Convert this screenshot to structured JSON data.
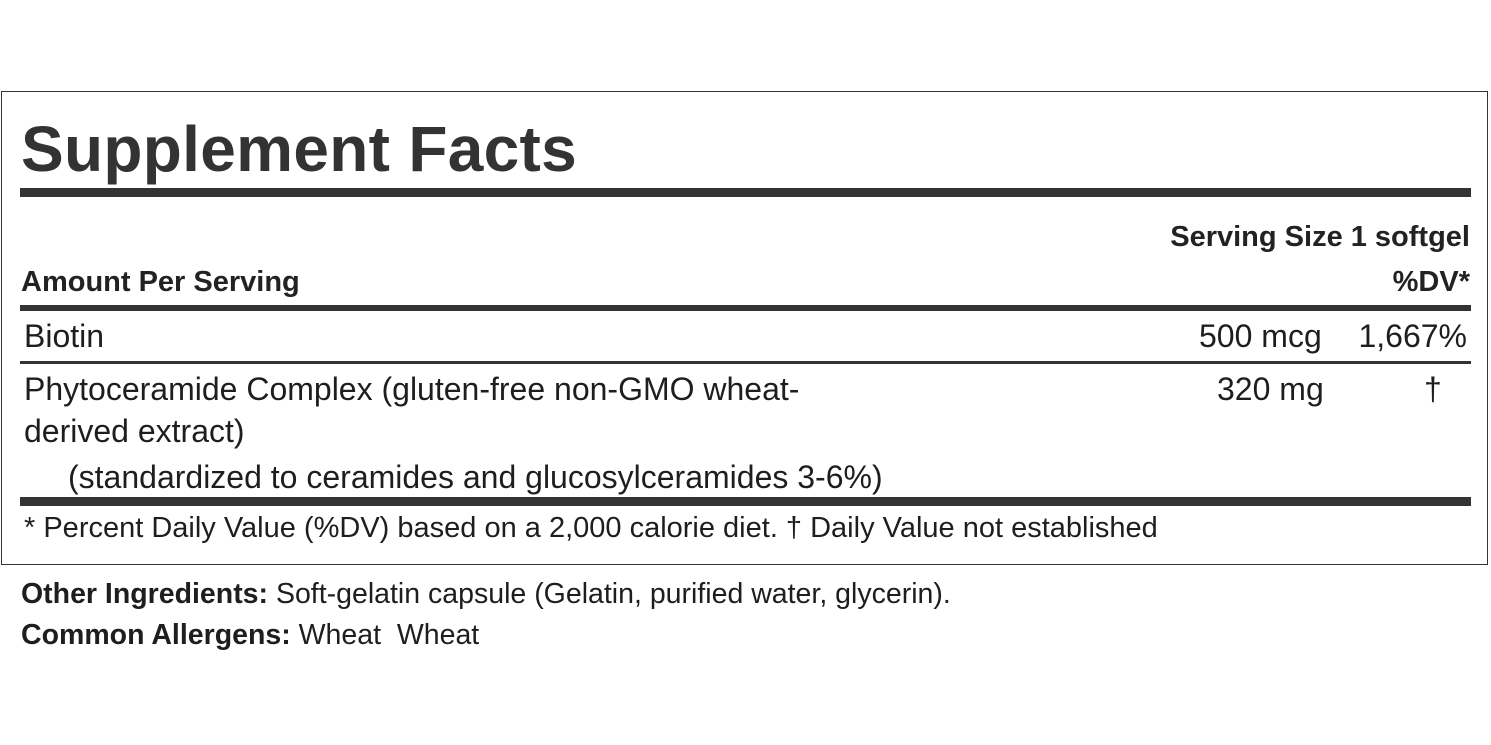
{
  "label": {
    "title": "Supplement Facts",
    "serving_size": "Serving Size 1 softgel",
    "amount_per_serving": "Amount Per Serving",
    "dv_header": "%DV*",
    "rows": [
      {
        "name": "Biotin",
        "amount": "500 mcg",
        "dv": "1,667%"
      },
      {
        "name_line1": "Phytoceramide Complex (gluten-free non-GMO wheat-",
        "name_line2": "derived extract)",
        "sub": "(standardized to ceramides and glucosylceramides 3-6%)",
        "amount": "320 mg",
        "dv": "†"
      }
    ],
    "footnote": "* Percent Daily Value (%DV) based on a 2,000 calorie diet. † Daily Value not established"
  },
  "other_ingredients": {
    "label": "Other Ingredients:",
    "value": " Soft-gelatin capsule (Gelatin, purified water, glycerin)."
  },
  "common_allergens": {
    "label": "Common Allergens:",
    "value": " Wheat  Wheat"
  }
}
